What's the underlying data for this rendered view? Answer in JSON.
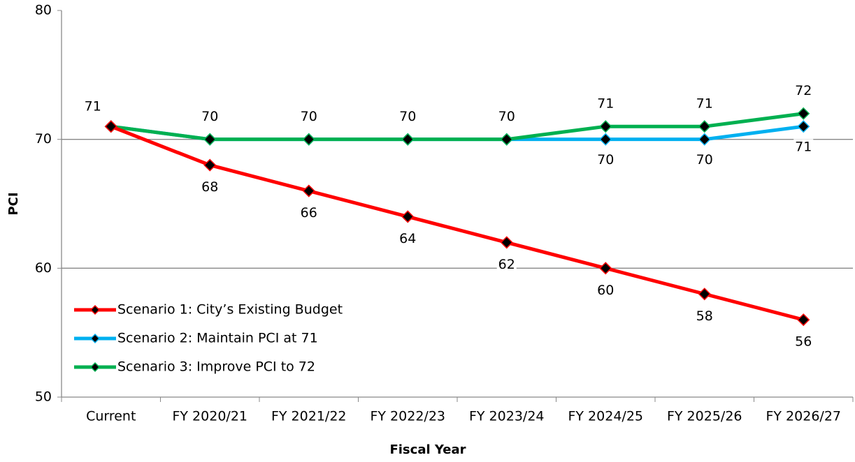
{
  "chart_data": {
    "type": "line",
    "x_label": "Fiscal Year",
    "y_label": "PCI",
    "categories": [
      "Current",
      "FY 2020/21",
      "FY 2021/22",
      "FY 2022/23",
      "FY 2023/24",
      "FY 2024/25",
      "FY 2025/26",
      "FY 2026/27"
    ],
    "series": [
      {
        "name": "Scenario 1: City’s Existing Budget",
        "color": "#ff0000",
        "values": [
          71,
          68,
          66,
          64,
          62,
          60,
          58,
          56
        ]
      },
      {
        "name": "Scenario 2: Maintain PCI at 71",
        "color": "#00b0f0",
        "values": [
          71,
          70,
          70,
          70,
          70,
          70,
          70,
          71
        ]
      },
      {
        "name": "Scenario 3: Improve PCI to 72",
        "color": "#00b050",
        "values": [
          71,
          70,
          70,
          70,
          70,
          71,
          71,
          72
        ]
      }
    ],
    "ylim": [
      50,
      80
    ],
    "yticks": [
      50,
      60,
      70,
      80
    ],
    "grid": true,
    "legend": "lower left"
  }
}
